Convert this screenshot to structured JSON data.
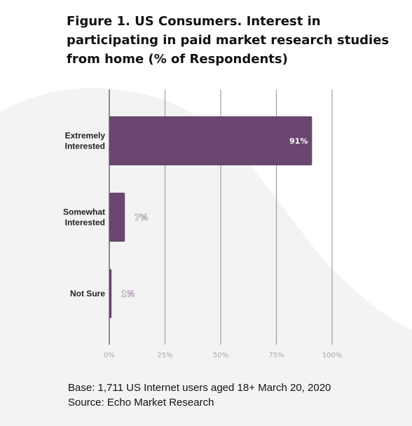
{
  "title": "Figure 1. US Consumers. Interest in participating in paid market research studies from home (% of Respondents)",
  "footnotes": {
    "base": "Base: 1,711 US Internet users aged 18+  March 20, 2020",
    "source": "Source: Echo Market Research"
  },
  "colors": {
    "bar": "#6a4670",
    "grid": "#9e9e9e",
    "background_swoosh": "#f3f3f3"
  },
  "chart_data": {
    "type": "bar",
    "orientation": "horizontal",
    "categories": [
      [
        "Extremely",
        "Interested"
      ],
      [
        "Somewhat",
        "Interested"
      ],
      [
        "Not Sure"
      ]
    ],
    "values": [
      91,
      7,
      1
    ],
    "value_labels": [
      "91%",
      "7%",
      "1%"
    ],
    "xlim": [
      0,
      100
    ],
    "x_ticks": [
      0,
      25,
      50,
      75,
      100
    ],
    "x_tick_labels": [
      "0%",
      "25%",
      "50%",
      "75%",
      "100%"
    ],
    "grid": true,
    "xlabel": "",
    "ylabel": ""
  }
}
